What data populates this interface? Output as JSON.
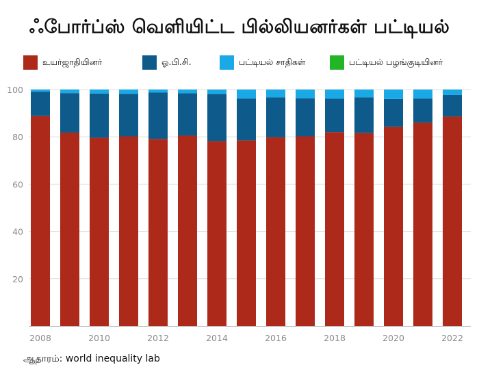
{
  "chart_data": {
    "type": "bar",
    "stacked": true,
    "title": "ஃபோர்ப்ஸ் வெளியிட்ட பில்லியனர்கள் பட்டியல்",
    "xlabel": "",
    "ylabel": "",
    "ylim": [
      0,
      100
    ],
    "yticks": [
      20,
      40,
      60,
      80,
      100
    ],
    "xticks": [
      "2008",
      "2010",
      "2012",
      "2014",
      "2016",
      "2018",
      "2020",
      "2022"
    ],
    "grid": true,
    "legend_position": "top",
    "categories": [
      "2008",
      "2009",
      "2010",
      "2011",
      "2012",
      "2013",
      "2014",
      "2015",
      "2016",
      "2017",
      "2018",
      "2019",
      "2020",
      "2021",
      "2022"
    ],
    "series": [
      {
        "name": "உயர்ஜாதியினர்",
        "color": "#ad2a1a",
        "values": [
          88.8,
          81.8,
          79.6,
          80.2,
          79.1,
          80.5,
          78.2,
          78.5,
          79.8,
          80.2,
          82.0,
          81.6,
          84.2,
          86.0,
          88.6
        ]
      },
      {
        "name": "ஓ.பி.சி.",
        "color": "#0e5a8a",
        "values": [
          10.3,
          16.7,
          18.7,
          18.0,
          19.6,
          17.9,
          19.9,
          17.7,
          16.9,
          16.1,
          14.1,
          15.1,
          11.8,
          10.2,
          9.1
        ]
      },
      {
        "name": "பட்டியல் சாதிகள்",
        "color": "#19a9e6",
        "values": [
          0.9,
          1.5,
          1.7,
          1.8,
          1.3,
          1.6,
          1.9,
          3.8,
          3.3,
          3.7,
          3.9,
          3.3,
          4.0,
          3.8,
          2.3
        ]
      },
      {
        "name": "பட்டியல் பழங்குடியினர்",
        "color": "#22b528",
        "values": [
          0,
          0,
          0,
          0,
          0,
          0,
          0,
          0,
          0,
          0,
          0,
          0,
          0,
          0,
          0
        ]
      }
    ]
  },
  "source": {
    "label": "ஆதாரம்:",
    "text": "world inequality lab"
  }
}
